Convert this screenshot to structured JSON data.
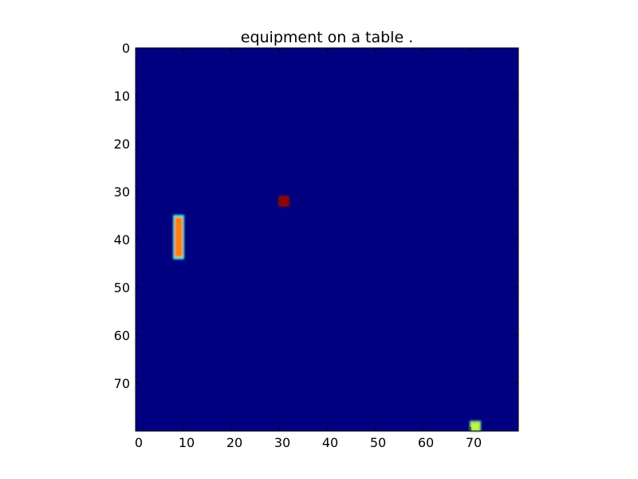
{
  "chart_data": {
    "type": "heatmap",
    "title": "equipment on a table .",
    "xlabel": "",
    "ylabel": "",
    "xlim": [
      0,
      80
    ],
    "ylim": [
      80,
      0
    ],
    "x_ticks": [
      0,
      10,
      20,
      30,
      40,
      50,
      60,
      70
    ],
    "y_ticks": [
      0,
      10,
      20,
      30,
      40,
      50,
      60,
      70
    ],
    "colormap": "jet",
    "background_value": 0.0,
    "background_color": "#000080",
    "grid": false,
    "legend": "none",
    "regions": [
      {
        "name": "vertical-bar",
        "x_range": [
          8,
          10
        ],
        "y_range": [
          35,
          44
        ],
        "value": 0.8,
        "edge_value": 0.45,
        "core_color": "#ff7f0e",
        "edge_color": "#2ee6d6"
      },
      {
        "name": "small-square",
        "x_range": [
          30,
          32
        ],
        "y_range": [
          31,
          33
        ],
        "value": 1.0,
        "core_color": "#9b0000",
        "edge_color": "#7a0a0a"
      },
      {
        "name": "bottom-square",
        "x_range": [
          70,
          72
        ],
        "y_range": [
          78,
          80
        ],
        "value": 0.6,
        "core_color": "#c8f53a",
        "edge_color": "#7ee07a"
      }
    ]
  }
}
